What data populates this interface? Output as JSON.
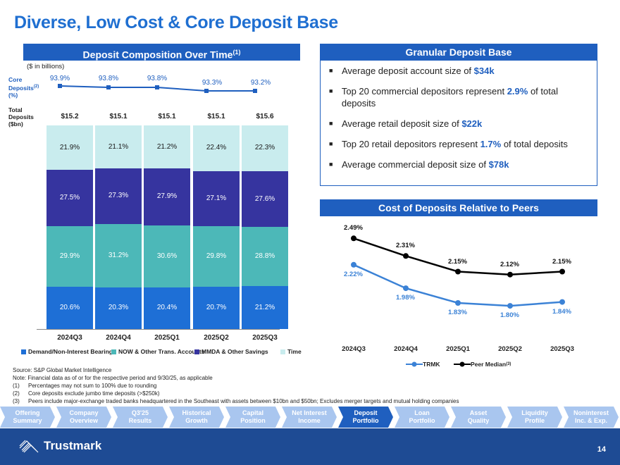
{
  "title": "Diverse, Low Cost & Core Deposit Base",
  "deposit_comp": {
    "header": "Deposit Composition Over Time",
    "header_sup": "(1)",
    "units": "($ in billions)",
    "core_label": "Core\nDeposits(2)\n(%)",
    "total_label": "Total\nDeposits\n($bn)",
    "quarters": [
      "2024Q3",
      "2024Q4",
      "2025Q1",
      "2025Q2",
      "2025Q3"
    ],
    "core_pct": [
      "93.9%",
      "93.8%",
      "93.8%",
      "93.3%",
      "93.2%"
    ],
    "totals": [
      "$15.2",
      "$15.1",
      "$15.1",
      "$15.1",
      "$15.6"
    ],
    "time": [
      "21.9%",
      "21.1%",
      "21.2%",
      "22.4%",
      "22.3%"
    ],
    "mmda": [
      "27.5%",
      "27.3%",
      "27.9%",
      "27.1%",
      "27.6%"
    ],
    "now": [
      "29.9%",
      "31.2%",
      "30.6%",
      "29.8%",
      "28.8%"
    ],
    "demand": [
      "20.6%",
      "20.3%",
      "20.4%",
      "20.7%",
      "21.2%"
    ],
    "legend": [
      "Demand/Non-Interest Bearing",
      "NOW & Other Trans. Accounts",
      "MMDA & Other Savings",
      "Time"
    ]
  },
  "granular": {
    "header": "Granular Deposit Base",
    "b1_pre": "Average deposit account size of ",
    "b1_hl": "$34k",
    "b2_pre": "Top 20 commercial depositors represent ",
    "b2_hl": "2.9%",
    "b2_post": " of total deposits",
    "b3_pre": "Average retail deposit size of ",
    "b3_hl": "$22k",
    "b4_pre": "Top 20 retail depositors represent ",
    "b4_hl": "1.7%",
    "b4_post": " of total deposits",
    "b5_pre": "Average commercial deposit size of ",
    "b5_hl": "$78k"
  },
  "cost": {
    "header": "Cost of Deposits Relative to Peers",
    "legend_trmk": "TRMK",
    "legend_peer": "Peer Median",
    "legend_peer_sup": "(3)"
  },
  "chart_data": [
    {
      "type": "bar",
      "title": "Deposit Composition Over Time",
      "categories": [
        "2024Q3",
        "2024Q4",
        "2025Q1",
        "2025Q2",
        "2025Q3"
      ],
      "series": [
        {
          "name": "Demand/Non-Interest Bearing",
          "values": [
            20.6,
            20.3,
            20.4,
            20.7,
            21.2
          ]
        },
        {
          "name": "NOW & Other Trans. Accounts",
          "values": [
            29.9,
            31.2,
            30.6,
            29.8,
            28.8
          ]
        },
        {
          "name": "MMDA & Other Savings",
          "values": [
            27.5,
            27.3,
            27.9,
            27.1,
            27.6
          ]
        },
        {
          "name": "Time",
          "values": [
            21.9,
            21.1,
            21.2,
            22.4,
            22.3
          ]
        }
      ],
      "core_deposits_pct": [
        93.9,
        93.8,
        93.8,
        93.3,
        93.2
      ],
      "total_deposits_bn": [
        15.2,
        15.1,
        15.1,
        15.1,
        15.6
      ],
      "stacked": true
    },
    {
      "type": "line",
      "title": "Cost of Deposits Relative to Peers",
      "categories": [
        "2024Q3",
        "2024Q4",
        "2025Q1",
        "2025Q2",
        "2025Q3"
      ],
      "series": [
        {
          "name": "TRMK",
          "values": [
            2.22,
            1.98,
            1.83,
            1.8,
            1.84
          ],
          "labels": [
            "2.22%",
            "1.98%",
            "1.83%",
            "1.80%",
            "1.84%"
          ],
          "color": "#3b82d6"
        },
        {
          "name": "Peer Median",
          "values": [
            2.49,
            2.31,
            2.15,
            2.12,
            2.15
          ],
          "labels": [
            "2.49%",
            "2.31%",
            "2.15%",
            "2.12%",
            "2.15%"
          ],
          "color": "#000000"
        }
      ]
    }
  ],
  "notes": {
    "source": "Source: S&P Global Market Intelligence",
    "note": "Note: Financial data as of or for the respective period and 9/30/25, as applicable",
    "n1_num": "(1)",
    "n1": "Percentages may not sum to 100% due to rounding",
    "n2_num": "(2)",
    "n2": "Core deposits exclude jumbo time deposits (>$250k)",
    "n3_num": "(3)",
    "n3": "Peers include major-exchange traded banks headquartered in the Southeast with assets between $10bn and $50bn; Excludes merger targets and mutual holding companies"
  },
  "nav": [
    {
      "l1": "Offering",
      "l2": "Summary"
    },
    {
      "l1": "Company",
      "l2": "Overview"
    },
    {
      "l1": "Q3'25",
      "l2": "Results"
    },
    {
      "l1": "Historical",
      "l2": "Growth"
    },
    {
      "l1": "Capital",
      "l2": "Position"
    },
    {
      "l1": "Net Interest",
      "l2": "Income"
    },
    {
      "l1": "Deposit",
      "l2": "Portfolio"
    },
    {
      "l1": "Loan",
      "l2": "Portfolio"
    },
    {
      "l1": "Asset",
      "l2": "Quality"
    },
    {
      "l1": "Liquidity",
      "l2": "Profile"
    },
    {
      "l1": "Noninterest",
      "l2": "Inc. & Exp."
    }
  ],
  "footer": {
    "brand": "Trustmark",
    "page": "14"
  },
  "colors": {
    "demand": "#1e6fd6",
    "now": "#4cb8b8",
    "mmda": "#36349f",
    "time": "#c9ecee",
    "trmk": "#3b82d6",
    "peer": "#000000"
  }
}
